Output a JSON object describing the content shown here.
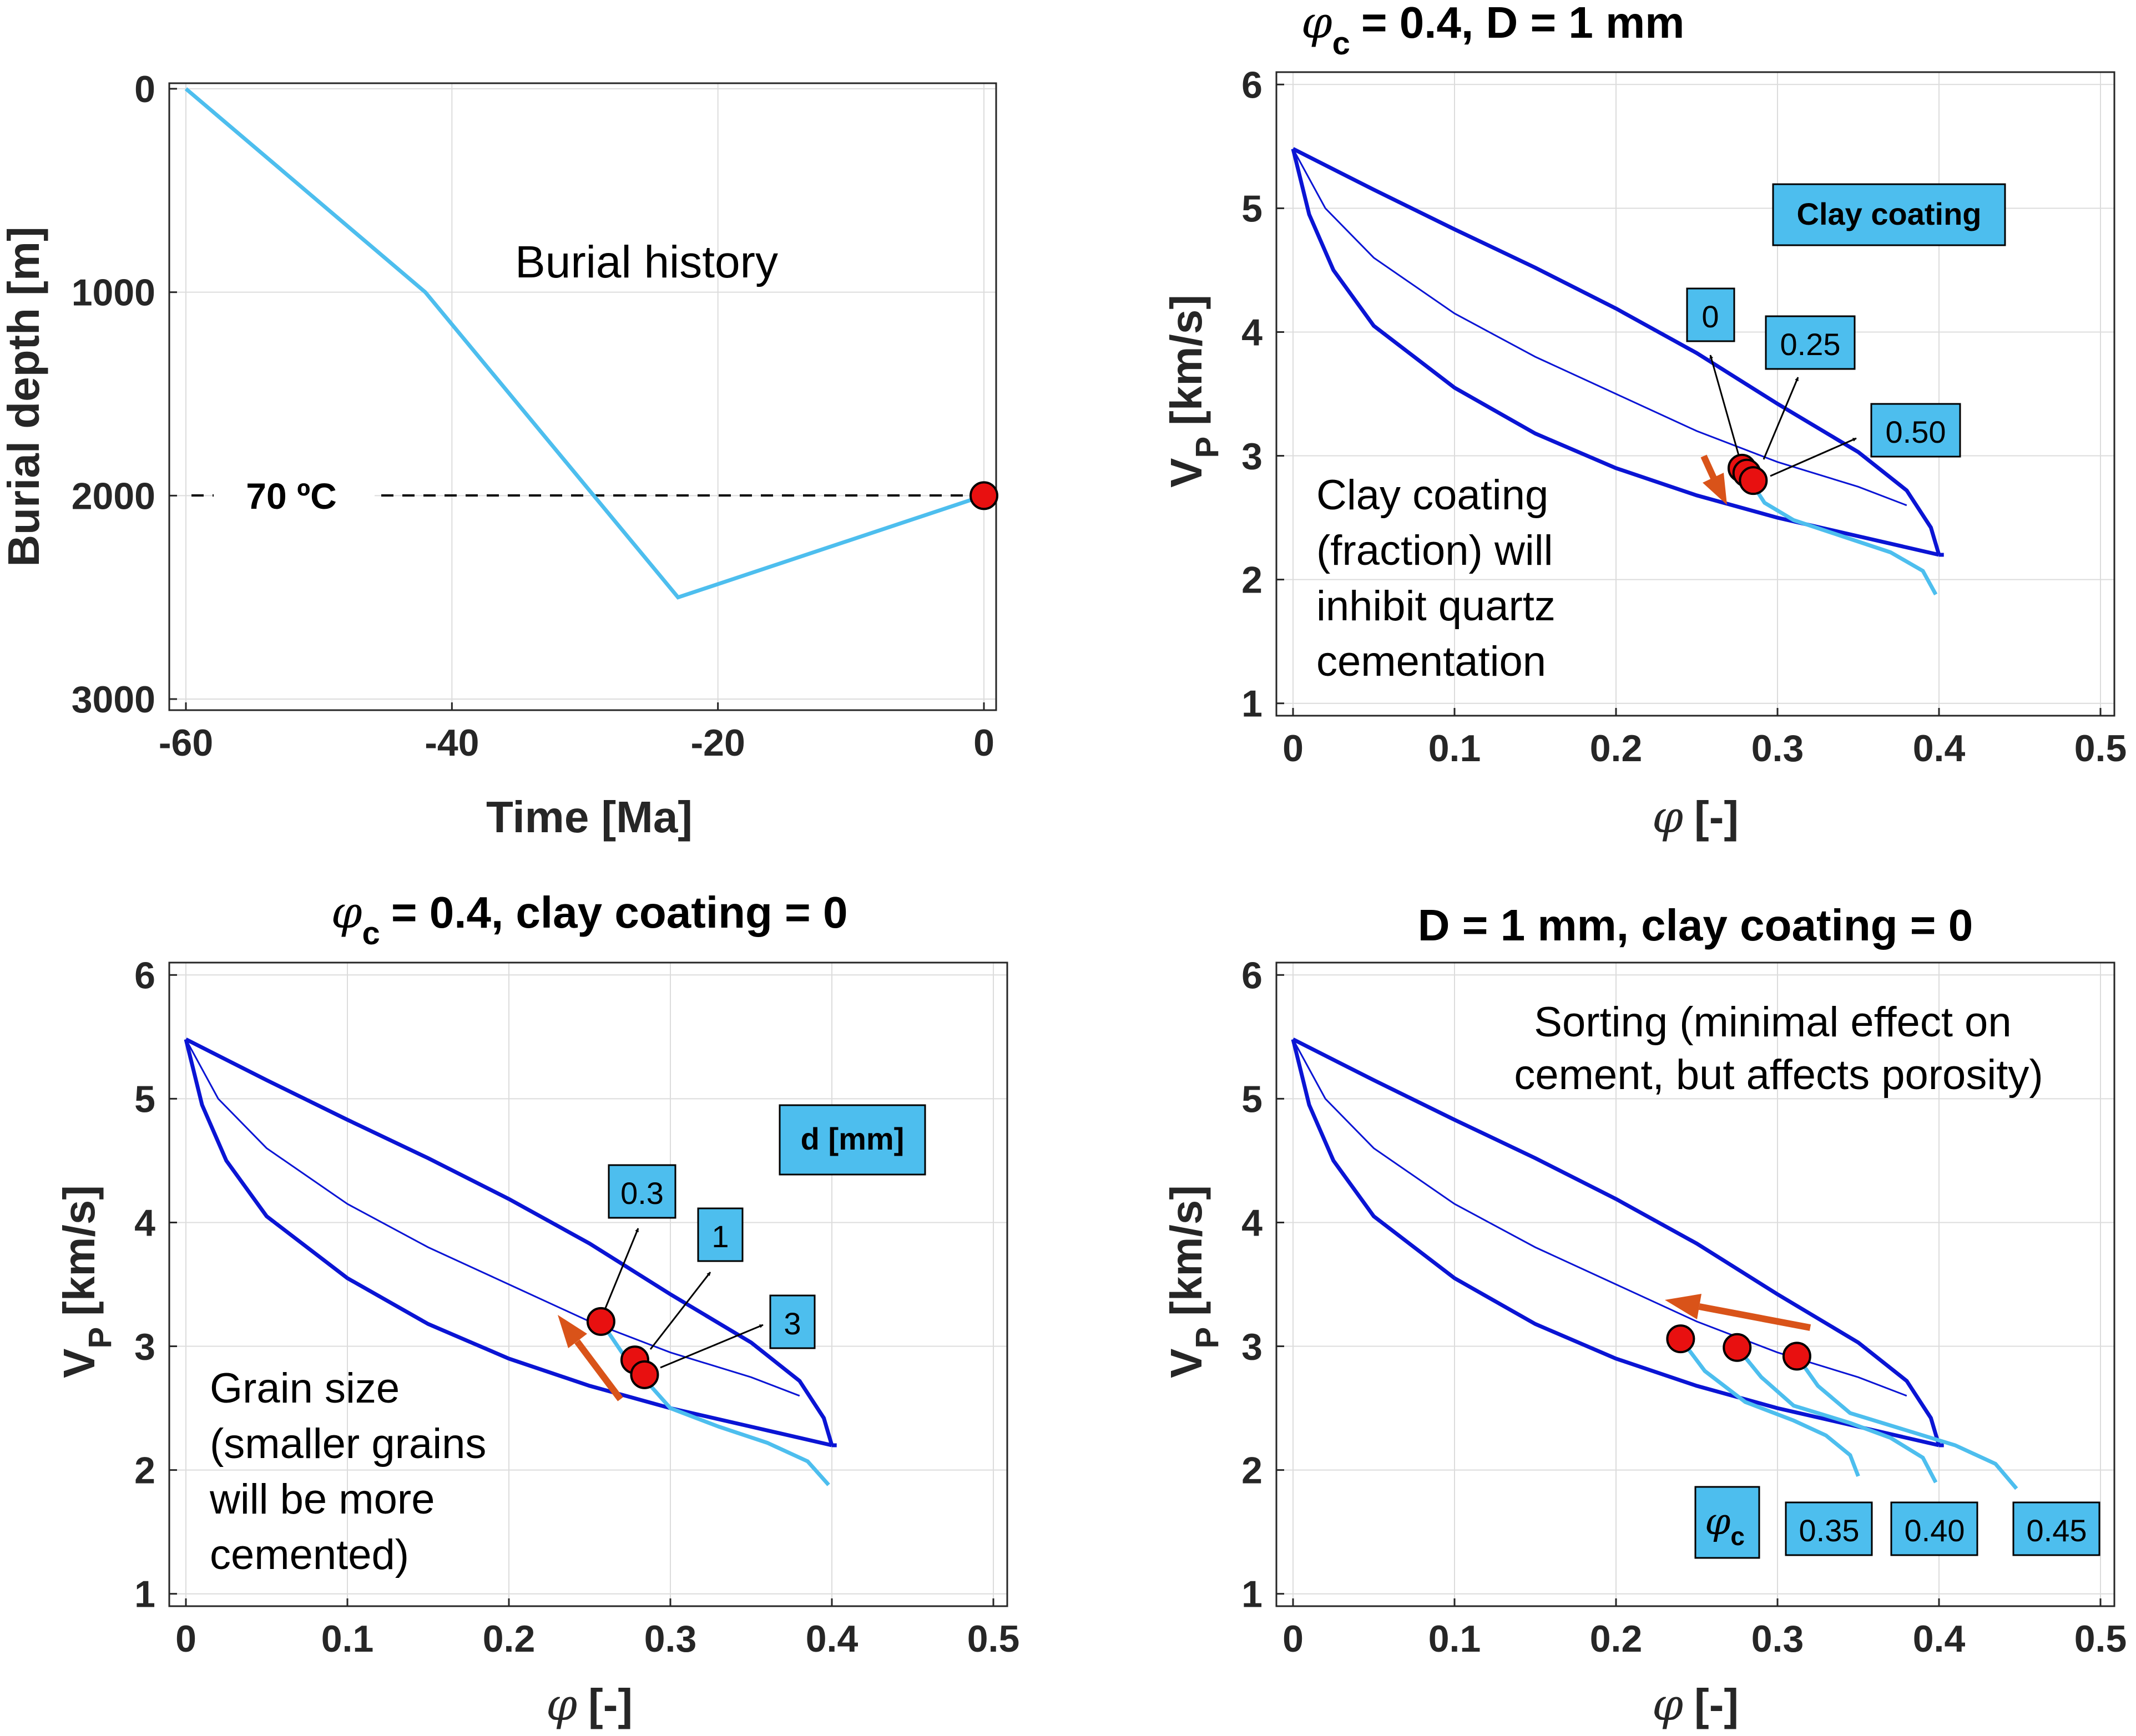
{
  "colors": {
    "bound_line": "#0a14d4",
    "path_line": "#4dbeee",
    "marker_fill": "#e81010",
    "orange_arrow": "#d95319",
    "label_box": "#4dbeee",
    "grid": "#dcdcdc",
    "axis": "#262626"
  },
  "chart_data": [
    {
      "id": "burial",
      "type": "line",
      "title": "",
      "xlabel": "Time [Ma]",
      "ylabel": "Burial depth [m]",
      "xlim": [
        -60,
        0
      ],
      "ylim": [
        0,
        3000
      ],
      "y_reversed": true,
      "xticks": [
        -60,
        -40,
        -20,
        0
      ],
      "yticks": [
        0,
        1000,
        2000,
        3000
      ],
      "series": [
        {
          "name": "Burial history",
          "x": [
            -60,
            -42,
            -23,
            0
          ],
          "y": [
            0,
            1000,
            2500,
            2000
          ]
        }
      ],
      "marker": {
        "x": 0,
        "y": 2000
      },
      "reference_line": {
        "y": 2000,
        "label": "70 ºC"
      },
      "annotation": "Burial history"
    },
    {
      "id": "clay",
      "type": "line",
      "title": "= 0.4, D = 1 mm",
      "title_symbol": "φ",
      "title_sub": "c",
      "xlabel": "[-]",
      "xlabel_symbol": "φ",
      "ylabel": "V",
      "ylabel_sub": "P",
      "ylabel_unit": "[km/s]",
      "xlim": [
        0,
        0.5
      ],
      "ylim": [
        0.9,
        6.1
      ],
      "xticks": [
        0,
        0.1,
        0.2,
        0.3,
        0.4,
        0.5
      ],
      "yticks": [
        1,
        2,
        3,
        4,
        5,
        6
      ],
      "label_box": "Clay coating",
      "annotation_lines": [
        "Clay coating",
        "(fraction) will",
        "inhibit quartz",
        "cementation"
      ],
      "markers": [
        {
          "x": 0.278,
          "y": 2.9
        },
        {
          "x": 0.281,
          "y": 2.86
        },
        {
          "x": 0.285,
          "y": 2.8
        }
      ],
      "value_labels": [
        "0",
        "0.25",
        "0.50"
      ],
      "paths": [
        {
          "x": [
            0.278,
            0.284,
            0.292,
            0.31,
            0.34,
            0.37,
            0.39,
            0.398
          ],
          "y": [
            2.9,
            2.78,
            2.62,
            2.48,
            2.35,
            2.22,
            2.07,
            1.88
          ]
        }
      ]
    },
    {
      "id": "grain",
      "type": "line",
      "title": "= 0.4, clay coating = 0",
      "title_symbol": "φ",
      "title_sub": "c",
      "xlabel": "[-]",
      "xlabel_symbol": "φ",
      "ylabel": "V",
      "ylabel_sub": "P",
      "ylabel_unit": "[km/s]",
      "xlim": [
        0,
        0.5
      ],
      "ylim": [
        0.9,
        6.1
      ],
      "xticks": [
        0,
        0.1,
        0.2,
        0.3,
        0.4,
        0.5
      ],
      "yticks": [
        1,
        2,
        3,
        4,
        5,
        6
      ],
      "label_box": "d [mm]",
      "annotation_lines": [
        "Grain size",
        "(smaller grains",
        "will be more",
        "cemented)"
      ],
      "markers": [
        {
          "x": 0.257,
          "y": 3.2
        },
        {
          "x": 0.278,
          "y": 2.89
        },
        {
          "x": 0.284,
          "y": 2.77
        }
      ],
      "value_labels": [
        "0.3",
        "1",
        "3"
      ],
      "paths": [
        {
          "x": [
            0.257,
            0.27,
            0.285,
            0.3,
            0.33,
            0.36,
            0.385,
            0.398
          ],
          "y": [
            3.2,
            2.95,
            2.72,
            2.5,
            2.35,
            2.22,
            2.07,
            1.88
          ]
        }
      ]
    },
    {
      "id": "sorting",
      "type": "line",
      "title": "D = 1 mm, clay coating = 0",
      "xlabel": "[-]",
      "xlabel_symbol": "φ",
      "ylabel": "V",
      "ylabel_sub": "P",
      "ylabel_unit": "[km/s]",
      "xlim": [
        0,
        0.5
      ],
      "ylim": [
        0.9,
        6.1
      ],
      "xticks": [
        0,
        0.1,
        0.2,
        0.3,
        0.4,
        0.5
      ],
      "yticks": [
        1,
        2,
        3,
        4,
        5,
        6
      ],
      "label_box_symbol": "φ",
      "label_box_sub": "c",
      "annotation_lines": [
        "Sorting (minimal effect on",
        "cement, but affects porosity)"
      ],
      "markers": [
        {
          "x": 0.24,
          "y": 3.06
        },
        {
          "x": 0.275,
          "y": 2.99
        },
        {
          "x": 0.312,
          "y": 2.92
        }
      ],
      "value_labels": [
        "0.35",
        "0.40",
        "0.45"
      ],
      "paths": [
        {
          "x": [
            0.24,
            0.255,
            0.28,
            0.31,
            0.33,
            0.345,
            0.35
          ],
          "y": [
            3.06,
            2.8,
            2.55,
            2.4,
            2.28,
            2.12,
            1.95
          ]
        },
        {
          "x": [
            0.275,
            0.29,
            0.31,
            0.345,
            0.37,
            0.39,
            0.398
          ],
          "y": [
            2.99,
            2.75,
            2.52,
            2.38,
            2.26,
            2.1,
            1.9
          ]
        },
        {
          "x": [
            0.312,
            0.325,
            0.345,
            0.38,
            0.41,
            0.435,
            0.448
          ],
          "y": [
            2.92,
            2.68,
            2.46,
            2.32,
            2.2,
            2.05,
            1.85
          ]
        }
      ]
    }
  ],
  "rock_physics_bounds": {
    "upper": {
      "x": [
        0,
        0.05,
        0.1,
        0.15,
        0.2,
        0.25,
        0.3,
        0.35,
        0.38,
        0.395,
        0.4
      ],
      "y": [
        5.48,
        5.15,
        4.83,
        4.52,
        4.19,
        3.83,
        3.42,
        3.03,
        2.72,
        2.42,
        2.2
      ]
    },
    "middle": {
      "x": [
        0,
        0.02,
        0.05,
        0.1,
        0.15,
        0.2,
        0.25,
        0.3,
        0.35,
        0.38
      ],
      "y": [
        5.48,
        5.0,
        4.6,
        4.15,
        3.8,
        3.5,
        3.2,
        2.95,
        2.75,
        2.6
      ]
    },
    "lower": {
      "x": [
        0,
        0.01,
        0.025,
        0.05,
        0.1,
        0.15,
        0.2,
        0.25,
        0.3,
        0.35,
        0.4
      ],
      "y": [
        5.48,
        4.95,
        4.5,
        4.05,
        3.55,
        3.18,
        2.9,
        2.68,
        2.5,
        2.35,
        2.2
      ]
    }
  }
}
